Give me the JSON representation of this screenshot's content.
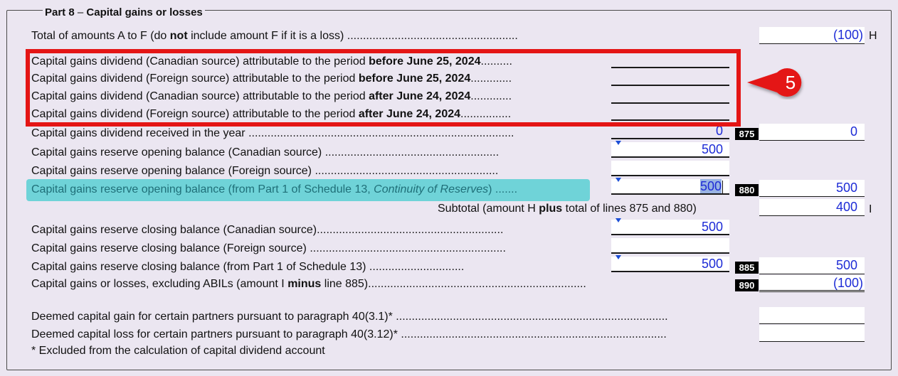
{
  "part_title": "Part 8",
  "part_dash": "–",
  "part_name": "Capital gains or losses",
  "rows": {
    "total": {
      "pre": "Total of amounts A to F (do ",
      "bold": "not",
      "post": " include amount F if it is a loss) ",
      "dots": "......................................................",
      "value": "(100)",
      "letter": "H"
    },
    "cgd_can_before": {
      "pre": "Capital gains dividend (Canadian source) attributable to the period ",
      "bold": "before June 25, 2024",
      "dots": "..........",
      "value": ""
    },
    "cgd_for_before": {
      "pre": "Capital gains dividend (Foreign source) attributable to the period ",
      "bold": "before June 25, 2024",
      "dots": ".............",
      "value": ""
    },
    "cgd_can_after": {
      "pre": "Capital gains dividend (Canadian source) attributable to the period ",
      "bold": "after June 24, 2024",
      "dots": ".............",
      "value": ""
    },
    "cgd_for_after": {
      "pre": "Capital gains dividend (Foreign source) attributable to the period ",
      "bold": "after June 24, 2024",
      "dots": "................",
      "value": ""
    },
    "cgd_received": {
      "pre": "Capital gains dividend received in the year ",
      "dots": "....................................................................................",
      "value": "0",
      "code": "875",
      "value2": "0"
    },
    "res_open_can": {
      "pre": "Capital gains reserve opening balance (Canadian source) ",
      "dots": ".......................................................",
      "value": "500"
    },
    "res_open_for": {
      "pre": "Capital gains reserve opening balance (Foreign source) ",
      "dots": "..........................................................",
      "value": ""
    },
    "res_open_total": {
      "pre": "Capital gains reserve opening balance (from Part 1 of Schedule 13, ",
      "italic": "Continuity of Reserves",
      "post": ") .......",
      "value": "500",
      "code": "880",
      "value2": "500"
    },
    "subtotal": {
      "pre": "Subtotal (amount H ",
      "bold": "plus",
      "post": " total of lines 875 and 880)",
      "value": "400",
      "letter": "I"
    },
    "res_close_can": {
      "pre": "Capital gains reserve closing balance (Canadian source)",
      "dots": "...........................................................",
      "value": "500"
    },
    "res_close_for": {
      "pre": "Capital gains reserve closing balance (Foreign source) ",
      "dots": "..............................................................",
      "value": ""
    },
    "res_close_total": {
      "pre": "Capital gains reserve closing balance (from Part 1 of Schedule 13) ",
      "dots": "..............................",
      "value": "500",
      "code": "885",
      "value2": "500"
    },
    "cg_losses": {
      "pre": "Capital gains or losses, excluding ABILs (amount I ",
      "bold": "minus",
      "post": " line 885)",
      "dots": ".....................................................................",
      "code": "890",
      "value2": "(100)"
    },
    "deemed_gain": {
      "pre": "Deemed capital gain for certain partners pursuant to paragraph 40(3.1)* ",
      "dots": "......................................................................................",
      "value2": ""
    },
    "deemed_loss": {
      "pre": "Deemed capital loss for certain partners pursuant to paragraph 40(3.12)* ",
      "dots": "....................................................................................",
      "value2": ""
    }
  },
  "footnote": "* Excluded from the calculation of capital dividend account",
  "callout_number": "5",
  "colors": {
    "background": "#ebe6f1",
    "value_blue": "#1d2bd6",
    "highlight": "#6fd3d8",
    "red": "#e41515"
  }
}
